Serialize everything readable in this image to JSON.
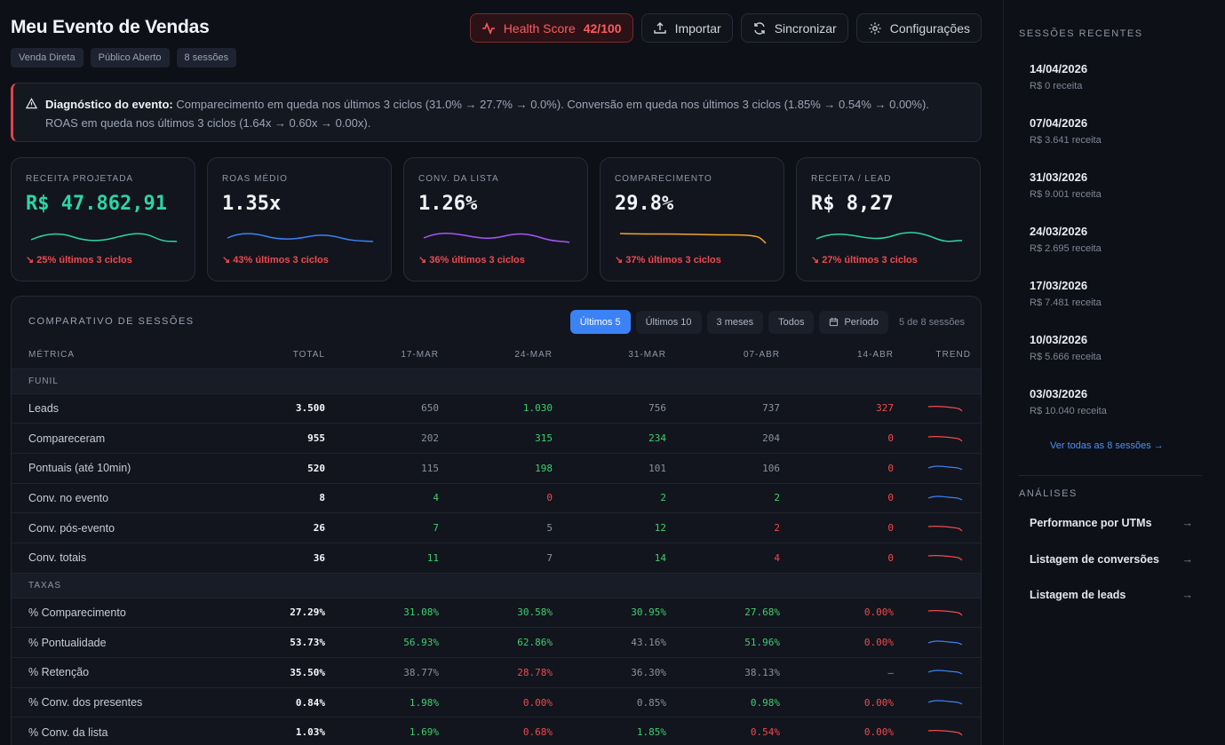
{
  "header": {
    "title": "Meu Evento de Vendas",
    "tags": [
      "Venda Direta",
      "Público Aberto",
      "8 sessões"
    ],
    "health_label": "Health Score",
    "health_value": "42/100",
    "import_label": "Importar",
    "sync_label": "Sincronizar",
    "settings_label": "Configurações"
  },
  "alert": {
    "title": "Diagnóstico do evento:",
    "text": " Comparecimento em queda nos últimos 3 ciclos (31.0% → 27.7% → 0.0%). Conversão em queda nos últimos 3 ciclos (1.85% → 0.54% → 0.00%). ROAS em queda nos últimos 3 ciclos (1.64x → 0.60x → 0.00x)."
  },
  "kpis": [
    {
      "label": "Receita projetada",
      "value": "R$ 47.862,91",
      "delta": "↘ 25% últimos 3 ciclos",
      "color": "#2dd4a8"
    },
    {
      "label": "ROAS médio",
      "value": "1.35x",
      "delta": "↘ 43% últimos 3 ciclos",
      "color": "#3b82f6"
    },
    {
      "label": "Conv. da lista",
      "value": "1.26%",
      "delta": "↘ 36% últimos 3 ciclos",
      "color": "#a855f7"
    },
    {
      "label": "Comparecimento",
      "value": "29.8%",
      "delta": "↘ 37% últimos 3 ciclos",
      "color": "#f5a524"
    },
    {
      "label": "Receita / lead",
      "value": "R$ 8,27",
      "delta": "↘ 27% últimos 3 ciclos",
      "color": "#2dd4a8"
    }
  ],
  "comparison": {
    "title": "COMPARATIVO DE SESSÕES",
    "filters": [
      "Últimos 5",
      "Últimos 10",
      "3 meses",
      "Todos",
      "Período"
    ],
    "count": "5 de 8 sessões",
    "columns": [
      "MÉTRICA",
      "TOTAL",
      "17-MAR",
      "24-MAR",
      "31-MAR",
      "07-ABR",
      "14-ABR",
      "TREND"
    ],
    "sections": [
      {
        "name": "FUNIL",
        "rows": [
          {
            "label": "Leads",
            "total": "3.500",
            "cells": [
              [
                "650",
                "n"
              ],
              [
                "1.030",
                "g"
              ],
              [
                "756",
                "n"
              ],
              [
                "737",
                "n"
              ],
              [
                "327",
                "r"
              ]
            ],
            "trend": "r"
          },
          {
            "label": "Compareceram",
            "total": "955",
            "cells": [
              [
                "202",
                "n"
              ],
              [
                "315",
                "g"
              ],
              [
                "234",
                "g"
              ],
              [
                "204",
                "n"
              ],
              [
                "0",
                "r"
              ]
            ],
            "trend": "r"
          },
          {
            "label": "Pontuais (até 10min)",
            "total": "520",
            "cells": [
              [
                "115",
                "n"
              ],
              [
                "198",
                "g"
              ],
              [
                "101",
                "n"
              ],
              [
                "106",
                "n"
              ],
              [
                "0",
                "r"
              ]
            ],
            "trend": "b"
          },
          {
            "label": "Conv. no evento",
            "total": "8",
            "cells": [
              [
                "4",
                "g"
              ],
              [
                "0",
                "r"
              ],
              [
                "2",
                "g"
              ],
              [
                "2",
                "g"
              ],
              [
                "0",
                "r"
              ]
            ],
            "trend": "b"
          },
          {
            "label": "Conv. pós-evento",
            "total": "26",
            "cells": [
              [
                "7",
                "g"
              ],
              [
                "5",
                "n"
              ],
              [
                "12",
                "g"
              ],
              [
                "2",
                "r"
              ],
              [
                "0",
                "r"
              ]
            ],
            "trend": "r"
          },
          {
            "label": "Conv. totais",
            "total": "36",
            "cells": [
              [
                "11",
                "g"
              ],
              [
                "7",
                "n"
              ],
              [
                "14",
                "g"
              ],
              [
                "4",
                "r"
              ],
              [
                "0",
                "r"
              ]
            ],
            "trend": "r"
          }
        ]
      },
      {
        "name": "TAXAS",
        "rows": [
          {
            "label": "% Comparecimento",
            "total": "27.29%",
            "cells": [
              [
                "31.08%",
                "g"
              ],
              [
                "30.58%",
                "g"
              ],
              [
                "30.95%",
                "g"
              ],
              [
                "27.68%",
                "g"
              ],
              [
                "0.00%",
                "r"
              ]
            ],
            "trend": "r"
          },
          {
            "label": "% Pontualidade",
            "total": "53.73%",
            "cells": [
              [
                "56.93%",
                "g"
              ],
              [
                "62.86%",
                "g"
              ],
              [
                "43.16%",
                "n"
              ],
              [
                "51.96%",
                "g"
              ],
              [
                "0.00%",
                "r"
              ]
            ],
            "trend": "b"
          },
          {
            "label": "% Retenção",
            "total": "35.50%",
            "cells": [
              [
                "38.77%",
                "n"
              ],
              [
                "28.78%",
                "r"
              ],
              [
                "36.30%",
                "n"
              ],
              [
                "38.13%",
                "n"
              ],
              [
                "—",
                "n"
              ]
            ],
            "trend": "b"
          },
          {
            "label": "% Conv. dos presentes",
            "total": "0.84%",
            "cells": [
              [
                "1.98%",
                "g"
              ],
              [
                "0.00%",
                "r"
              ],
              [
                "0.85%",
                "n"
              ],
              [
                "0.98%",
                "g"
              ],
              [
                "0.00%",
                "r"
              ]
            ],
            "trend": "b"
          },
          {
            "label": "% Conv. da lista",
            "total": "1.03%",
            "cells": [
              [
                "1.69%",
                "g"
              ],
              [
                "0.68%",
                "r"
              ],
              [
                "1.85%",
                "g"
              ],
              [
                "0.54%",
                "r"
              ],
              [
                "0.00%",
                "r"
              ]
            ],
            "trend": "r"
          }
        ]
      }
    ]
  },
  "sidebar": {
    "recent_title": "SESSÕES RECENTES",
    "sessions": [
      {
        "date": "14/04/2026",
        "revenue": "R$ 0 receita"
      },
      {
        "date": "07/04/2026",
        "revenue": "R$ 3.641 receita"
      },
      {
        "date": "31/03/2026",
        "revenue": "R$ 9.001 receita"
      },
      {
        "date": "24/03/2026",
        "revenue": "R$ 2.695 receita"
      },
      {
        "date": "17/03/2026",
        "revenue": "R$ 7.481 receita"
      },
      {
        "date": "10/03/2026",
        "revenue": "R$ 5.666 receita"
      },
      {
        "date": "03/03/2026",
        "revenue": "R$ 10.040 receita"
      }
    ],
    "view_all": "Ver todas as 8 sessões →",
    "analyses_title": "ANÁLISES",
    "analyses": [
      "Performance por UTMs",
      "Listagem de conversões",
      "Listagem de leads"
    ],
    "arrow": "→"
  }
}
